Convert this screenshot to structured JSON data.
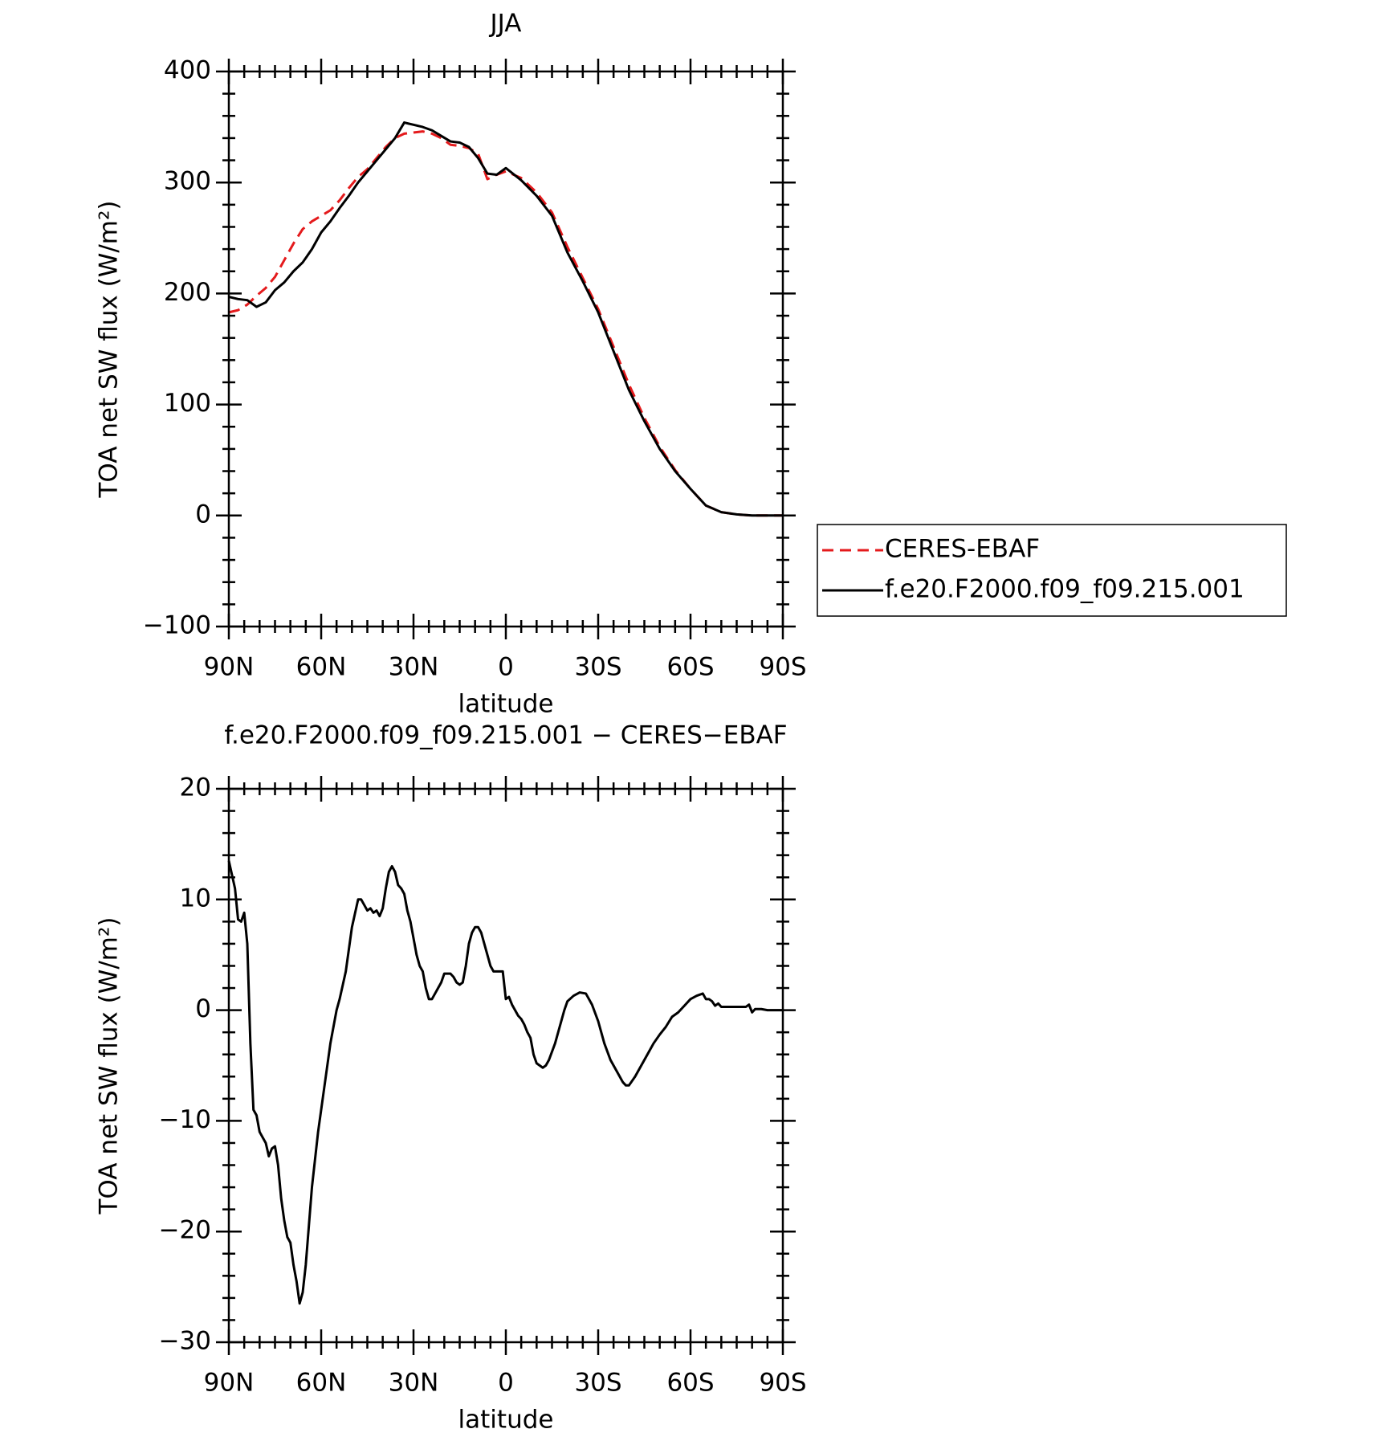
{
  "chart_data": [
    {
      "type": "line",
      "title": "JJA",
      "xlabel": "latitude",
      "ylabel": "TOA net SW flux (W/m²)",
      "x": [
        90,
        87,
        84,
        81,
        78,
        75,
        72,
        69,
        66,
        63,
        60,
        57,
        54,
        51,
        48,
        45,
        42,
        39,
        36,
        33,
        30,
        27,
        24,
        21,
        18,
        15,
        12,
        9,
        6,
        3,
        0,
        -5,
        -10,
        -15,
        -20,
        -25,
        -30,
        -35,
        -40,
        -45,
        -50,
        -55,
        -60,
        -65,
        -70,
        -75,
        -80,
        -85,
        -90
      ],
      "series": [
        {
          "name": "CERES-EBAF",
          "color": "#e41a1c",
          "line_style": "dashed",
          "values": [
            183,
            185,
            190,
            198,
            205,
            215,
            230,
            245,
            258,
            265,
            270,
            275,
            284,
            295,
            305,
            312,
            322,
            332,
            340,
            344,
            345,
            346,
            344,
            340,
            334,
            333,
            331,
            326,
            303,
            307,
            310,
            304,
            291,
            273,
            242,
            214,
            186,
            152,
            118,
            88,
            62,
            41,
            24,
            9,
            3,
            1,
            0,
            0,
            0
          ]
        },
        {
          "name": "f.e20.F2000.f09_f09.215.001",
          "color": "#000000",
          "line_style": "solid",
          "values": [
            197,
            195,
            194,
            188,
            192,
            203,
            210,
            220,
            228,
            240,
            255,
            265,
            277,
            288,
            300,
            310,
            320,
            330,
            340,
            354,
            352,
            350,
            347,
            342,
            337,
            336,
            332,
            322,
            308,
            307,
            313,
            302,
            288,
            270,
            237,
            211,
            183,
            148,
            113,
            85,
            60,
            40,
            24,
            9,
            3,
            1,
            0,
            0,
            0
          ]
        }
      ],
      "xlim": [
        90,
        -90
      ],
      "xticks": [
        {
          "value": 90,
          "label": "90N"
        },
        {
          "value": 60,
          "label": "60N"
        },
        {
          "value": 30,
          "label": "30N"
        },
        0,
        {
          "value": -30,
          "label": "30S"
        },
        {
          "value": -60,
          "label": "60S"
        },
        {
          "value": -90,
          "label": "90S"
        }
      ],
      "ylim": [
        -100,
        400
      ],
      "yticks": [
        {
          "value": -100,
          "label": "−100"
        },
        0,
        100,
        200,
        300,
        400
      ],
      "legend": "right"
    },
    {
      "type": "line",
      "title": "f.e20.F2000.f09_f09.215.001 − CERES−EBAF",
      "xlabel": "latitude",
      "ylabel": "TOA net SW flux (W/m²)",
      "x": [
        90,
        88,
        87,
        86,
        85,
        84,
        83,
        82,
        81,
        80,
        78,
        77,
        76,
        75,
        74,
        73,
        72,
        71,
        70,
        69,
        68,
        67,
        66,
        65,
        63,
        61,
        59,
        57,
        55,
        54,
        52,
        50,
        48,
        47,
        46,
        45,
        44,
        43,
        42,
        41,
        40,
        39,
        38,
        37,
        36,
        35,
        34,
        33,
        32,
        31,
        30,
        29,
        28,
        27,
        26,
        25,
        24,
        23,
        22,
        21,
        20,
        19,
        18,
        17,
        16,
        15,
        14,
        13,
        12,
        11,
        10,
        9,
        8,
        7,
        6,
        5,
        4,
        3,
        1,
        0,
        -1,
        -2,
        -3,
        -4,
        -5,
        -6,
        -7,
        -8,
        -9,
        -10,
        -11,
        -12,
        -13,
        -14,
        -16,
        -18,
        -19,
        -20,
        -22,
        -24,
        -26,
        -27,
        -28,
        -30,
        -32,
        -34,
        -36,
        -38,
        -39,
        -40,
        -42,
        -44,
        -46,
        -48,
        -50,
        -52,
        -54,
        -56,
        -58,
        -60,
        -62,
        -64,
        -65,
        -66,
        -67,
        -68,
        -69,
        -70,
        -72,
        -75,
        -78,
        -79,
        -80,
        -81,
        -83,
        -85,
        -90
      ],
      "values": [
        13.5,
        11,
        8.2,
        8,
        8.8,
        6,
        -3,
        -9,
        -9.5,
        -11,
        -12,
        -13.2,
        -12.5,
        -12.3,
        -14,
        -17,
        -19,
        -20.5,
        -21,
        -23,
        -24.5,
        -26.5,
        -25.5,
        -23,
        -16,
        -11,
        -7,
        -3,
        0,
        1,
        3.5,
        7.5,
        10,
        10,
        9.5,
        9,
        9.2,
        8.8,
        9,
        8.5,
        9.2,
        11,
        12.5,
        13,
        12.5,
        11.3,
        11,
        10.5,
        9,
        8,
        6.5,
        5,
        4,
        3.5,
        2,
        1,
        1,
        1.5,
        2,
        2.5,
        3.3,
        3.3,
        3.3,
        3,
        2.5,
        2.3,
        2.5,
        4,
        6,
        7,
        7.5,
        7.5,
        7,
        6,
        5,
        4,
        3.5,
        3.5,
        3.5,
        1,
        1.2,
        0.5,
        0,
        -0.5,
        -0.8,
        -1.3,
        -2,
        -2.5,
        -4,
        -4.8,
        -5,
        -5.2,
        -5,
        -4.5,
        -3,
        -1,
        0,
        0.8,
        1.3,
        1.6,
        1.5,
        1,
        0.5,
        -1,
        -3,
        -4.5,
        -5.5,
        -6.5,
        -6.8,
        -6.8,
        -6,
        -5,
        -4,
        -3,
        -2.2,
        -1.5,
        -0.6,
        -0.2,
        0.4,
        1,
        1.3,
        1.5,
        1,
        1,
        0.8,
        0.4,
        0.6,
        0.3,
        0.3,
        0.3,
        0.3,
        0.5,
        -0.2,
        0.1,
        0.1,
        0,
        0
      ],
      "color": "#000000",
      "xlim": [
        90,
        -90
      ],
      "xticks": [
        {
          "value": 90,
          "label": "90N"
        },
        {
          "value": 60,
          "label": "60N"
        },
        {
          "value": 30,
          "label": "30N"
        },
        0,
        {
          "value": -30,
          "label": "30S"
        },
        {
          "value": -60,
          "label": "60S"
        },
        {
          "value": -90,
          "label": "90S"
        }
      ],
      "ylim": [
        -30,
        20
      ],
      "yticks": [
        {
          "value": -30,
          "label": "−30"
        },
        {
          "value": -20,
          "label": "−20"
        },
        {
          "value": -10,
          "label": "−10"
        },
        0,
        10,
        20
      ]
    }
  ]
}
